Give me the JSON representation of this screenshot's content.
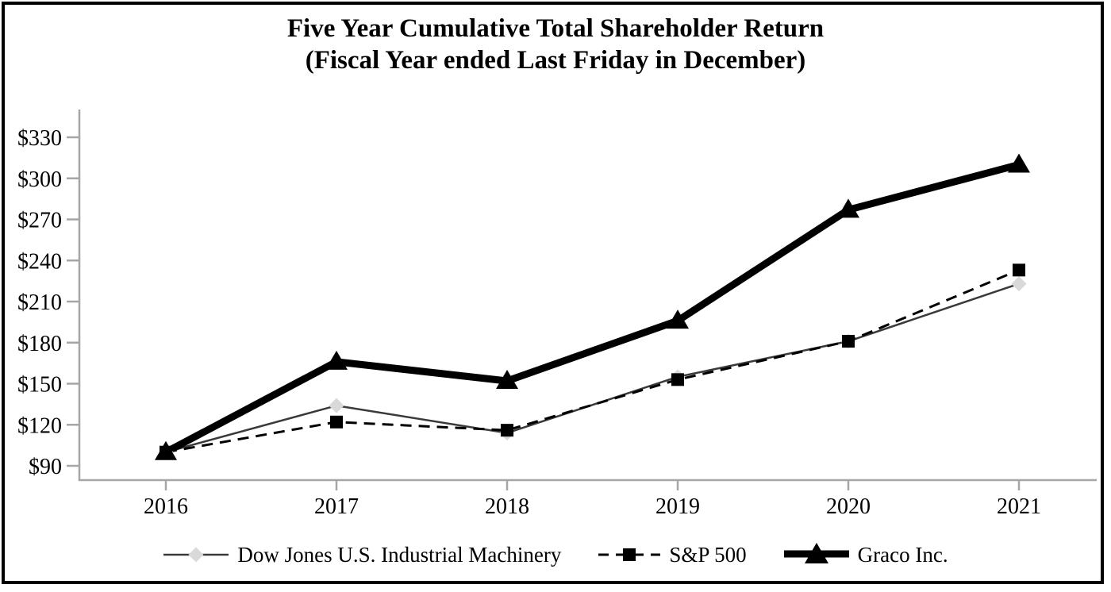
{
  "title": {
    "line1": "Five Year Cumulative Total Shareholder Return",
    "line2": "(Fiscal Year ended Last Friday in December)"
  },
  "chart_data": {
    "type": "line",
    "title": "Five Year Cumulative Total Shareholder Return (Fiscal Year ended Last Friday in December)",
    "x": [
      2016,
      2017,
      2018,
      2019,
      2020,
      2021
    ],
    "x_tick_labels": [
      "2016",
      "2017",
      "2018",
      "2019",
      "2020",
      "2021"
    ],
    "series": [
      {
        "name": "Dow Jones U.S. Industrial Machinery",
        "values": [
          100,
          134,
          114,
          155,
          181,
          223
        ],
        "line_style": "solid-thin",
        "marker": "diamond",
        "line_color": "#3a3a3a",
        "marker_color": "#d9d9d9"
      },
      {
        "name": "S&P 500",
        "values": [
          100,
          122,
          116,
          153,
          181,
          233
        ],
        "line_style": "dashed",
        "marker": "square",
        "line_color": "#000000",
        "marker_color": "#000000"
      },
      {
        "name": "Graco Inc.",
        "values": [
          100,
          166,
          152,
          196,
          277,
          310
        ],
        "line_style": "solid-thick",
        "marker": "triangle",
        "line_color": "#000000",
        "marker_color": "#000000"
      }
    ],
    "ylim": [
      90,
      330
    ],
    "y_tick_step": 30,
    "y_tick_prefix": "$",
    "y_tick_labels": [
      "$90",
      "$120",
      "$150",
      "$180",
      "$210",
      "$240",
      "$270",
      "$300",
      "$330"
    ],
    "grid": false,
    "legend_position": "bottom",
    "axis_color": "#a6a6a6"
  },
  "legend": {
    "items": [
      {
        "label": "Dow Jones U.S. Industrial Machinery"
      },
      {
        "label": "S&P 500"
      },
      {
        "label": "Graco Inc."
      }
    ]
  }
}
